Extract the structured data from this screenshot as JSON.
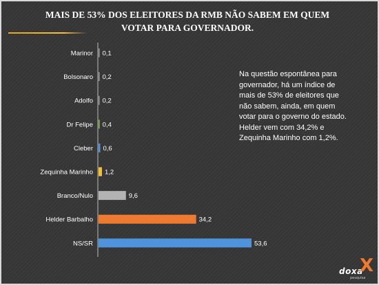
{
  "header": {
    "title_line1": "MAIS DE 53% DOS ELEITORES DA RMB NÃO SABEM EM QUEM",
    "title_line2": "VOTAR PARA GOVERNADOR."
  },
  "note": "Na questão espontânea para governador, há um índice de mais de 53% de eleitores que não sabem, ainda, em quem votar para o governo do estado. Helder vem com 34,2% e Zequinha Marinho com 1,2%.",
  "logo": {
    "text": "doxa",
    "mark": "X",
    "sub": "pesquisa"
  },
  "colors": {
    "title_accent": "#f0b830",
    "orange": "#ee7a30",
    "blue": "#4f93dc",
    "gray": "#b3b3b3",
    "yellow": "#f2c12e",
    "green": "#86b04b"
  },
  "chart_data": {
    "type": "bar",
    "orientation": "horizontal",
    "categories": [
      "Marinor",
      "Bolsonaro",
      "Adolfo",
      "Dr Felipe",
      "Cleber",
      "Zequinha Marinho",
      "Branco/Nulo",
      "Helder Barbalho",
      "NS/SR"
    ],
    "values": [
      0.1,
      0.2,
      0.2,
      0.4,
      0.6,
      1.2,
      9.6,
      34.2,
      53.6
    ],
    "value_labels": [
      "0,1",
      "0,2",
      "0,2",
      "0,4",
      "0,6",
      "1,2",
      "9,6",
      "34,2",
      "53,6"
    ],
    "bar_colors": [
      "#9b9b9b",
      "#9b9b9b",
      "#9b9b9b",
      "#86b04b",
      "#4f93dc",
      "#f2c12e",
      "#b3b3b3",
      "#ee7a30",
      "#4f93dc"
    ],
    "xlim": [
      0,
      53.6
    ],
    "grid": false,
    "legend": "none"
  }
}
